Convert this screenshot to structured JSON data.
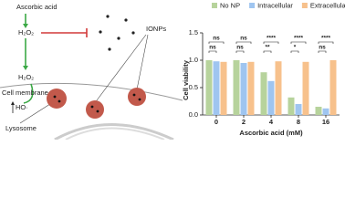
{
  "diagram": {
    "reagent": "Ascorbic acid",
    "h2o2_outside": "H₂O₂",
    "particles": "IONPs",
    "membrane": "Cell membrane",
    "h2o2_inside": "H₂O₂",
    "radical": "HO·",
    "organelle": "Lysosome"
  },
  "chart_data": {
    "type": "bar",
    "x_label": "Ascorbic acid (mM)",
    "y_label": "Cell viability",
    "categories": [
      "0",
      "2",
      "4",
      "8",
      "16"
    ],
    "series": [
      {
        "name": "No NP",
        "color": "#b7d39c",
        "values": [
          1.0,
          1.0,
          0.78,
          0.32,
          0.15
        ]
      },
      {
        "name": "Intracellular",
        "color": "#9fc5f0",
        "values": [
          0.98,
          0.95,
          0.62,
          0.2,
          0.12
        ]
      },
      {
        "name": "Extracellular",
        "color": "#f7c18c",
        "values": [
          0.97,
          0.97,
          0.98,
          0.97,
          1.0
        ]
      }
    ],
    "significance": [
      [
        "ns",
        "ns"
      ],
      [
        "ns",
        "ns"
      ],
      [
        "**",
        "****"
      ],
      [
        "*",
        "****"
      ],
      [
        "ns",
        "****"
      ]
    ],
    "ylim": [
      0,
      1.5
    ],
    "yticks": [
      {
        "value": 0,
        "label": "0.0"
      },
      {
        "value": 0.5,
        "label": "0.5"
      },
      {
        "value": 1,
        "label": "1.0"
      },
      {
        "value": 1.5,
        "label": "1.5"
      }
    ],
    "legend": "top"
  }
}
